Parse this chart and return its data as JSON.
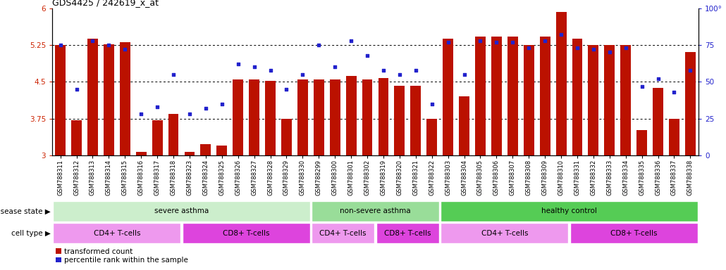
{
  "title": "GDS4425 / 242619_x_at",
  "samples": [
    "GSM788311",
    "GSM788312",
    "GSM788313",
    "GSM788314",
    "GSM788315",
    "GSM788316",
    "GSM788317",
    "GSM788318",
    "GSM788323",
    "GSM788324",
    "GSM788325",
    "GSM788326",
    "GSM788327",
    "GSM788328",
    "GSM788329",
    "GSM788330",
    "GSM788299",
    "GSM788300",
    "GSM788301",
    "GSM788302",
    "GSM788319",
    "GSM788320",
    "GSM788321",
    "GSM788322",
    "GSM788303",
    "GSM788304",
    "GSM788305",
    "GSM788306",
    "GSM788307",
    "GSM788308",
    "GSM788309",
    "GSM788310",
    "GSM788331",
    "GSM788332",
    "GSM788333",
    "GSM788334",
    "GSM788335",
    "GSM788336",
    "GSM788337",
    "GSM788338"
  ],
  "bar_values": [
    5.25,
    3.72,
    5.38,
    5.27,
    5.3,
    3.08,
    3.72,
    3.85,
    3.08,
    3.23,
    3.2,
    4.55,
    4.55,
    4.52,
    3.75,
    4.55,
    4.55,
    4.55,
    4.62,
    4.55,
    4.58,
    4.42,
    4.42,
    3.75,
    5.38,
    4.2,
    5.42,
    5.42,
    5.42,
    5.25,
    5.42,
    5.92,
    5.38,
    5.25,
    5.25,
    5.25,
    3.52,
    4.38,
    3.75,
    5.1
  ],
  "scatter_values": [
    75,
    45,
    78,
    75,
    72,
    28,
    33,
    55,
    28,
    32,
    35,
    62,
    60,
    58,
    45,
    55,
    75,
    60,
    78,
    68,
    58,
    55,
    58,
    35,
    77,
    55,
    78,
    77,
    77,
    73,
    78,
    82,
    73,
    72,
    70,
    73,
    47,
    52,
    43,
    58
  ],
  "ylim_left": [
    3.0,
    6.0
  ],
  "ylim_right": [
    0,
    100
  ],
  "yticks_left": [
    3.0,
    3.75,
    4.5,
    5.25,
    6.0
  ],
  "yticks_right": [
    0,
    25,
    50,
    75,
    100
  ],
  "ytick_labels_left": [
    "3",
    "3.75",
    "4.5",
    "5.25",
    "6"
  ],
  "ytick_labels_right": [
    "0",
    "25",
    "50",
    "75",
    "100°"
  ],
  "hlines": [
    3.75,
    4.5,
    5.25
  ],
  "bar_color": "#bb1100",
  "scatter_color": "#2222cc",
  "bar_width": 0.65,
  "disease_groups": [
    {
      "label": "severe asthma",
      "start": 0,
      "end": 16,
      "color": "#cceecc"
    },
    {
      "label": "non-severe asthma",
      "start": 16,
      "end": 24,
      "color": "#99dd99"
    },
    {
      "label": "healthy control",
      "start": 24,
      "end": 40,
      "color": "#55cc55"
    }
  ],
  "cell_groups": [
    {
      "label": "CD4+ T-cells",
      "start": 0,
      "end": 8,
      "color": "#ee99ee"
    },
    {
      "label": "CD8+ T-cells",
      "start": 8,
      "end": 16,
      "color": "#dd44dd"
    },
    {
      "label": "CD4+ T-cells",
      "start": 16,
      "end": 20,
      "color": "#ee99ee"
    },
    {
      "label": "CD8+ T-cells",
      "start": 20,
      "end": 24,
      "color": "#dd44dd"
    },
    {
      "label": "CD4+ T-cells",
      "start": 24,
      "end": 32,
      "color": "#ee99ee"
    },
    {
      "label": "CD8+ T-cells",
      "start": 32,
      "end": 40,
      "color": "#dd44dd"
    }
  ],
  "disease_row_label": "disease state",
  "cell_row_label": "cell type",
  "legend_bar_label": "transformed count",
  "legend_scatter_label": "percentile rank within the sample",
  "tick_label_color_left": "#cc2200",
  "tick_label_color_right": "#2222cc",
  "title_fontsize": 9,
  "tick_fontsize": 6,
  "group_label_fontsize": 7.5,
  "row_label_fontsize": 7.5,
  "legend_fontsize": 7.5
}
